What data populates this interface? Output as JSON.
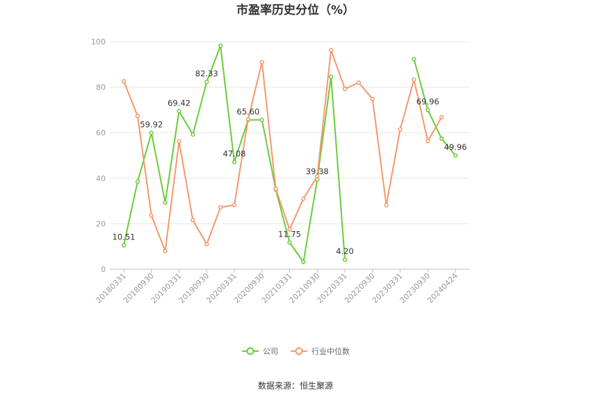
{
  "chart_data": {
    "type": "line",
    "title": "市盈率历史分位（%）",
    "source": "数据来源：恒生聚源",
    "ylim": [
      0,
      100
    ],
    "y_ticks": [
      0,
      20,
      40,
      60,
      80,
      100
    ],
    "grid": true,
    "legend_position": "bottom-center",
    "x": [
      "20180331",
      "20180630",
      "20180930",
      "20181231",
      "20190331",
      "20190630",
      "20190930",
      "20191231",
      "20200331",
      "20200630",
      "20200930",
      "20201231",
      "20210331",
      "20210630",
      "20210930",
      "20211231",
      "20220331",
      "20220630",
      "20220930",
      "20221231",
      "20230331",
      "20230630",
      "20230930",
      "20231231",
      "20240424"
    ],
    "x_tick_labels": [
      "20180331",
      "",
      "20180930",
      "",
      "20190331",
      "",
      "20190930",
      "",
      "20200331",
      "",
      "20200930",
      "",
      "20210331",
      "",
      "20210930",
      "",
      "20220331",
      "",
      "20220930",
      "",
      "20230331",
      "",
      "20230930",
      "",
      "20240424"
    ],
    "series": [
      {
        "name": "公司",
        "color": "#6bcb3a",
        "values": [
          10.51,
          38.5,
          59.92,
          29.3,
          69.42,
          59.2,
          82.33,
          98.2,
          47.08,
          65.6,
          65.6,
          35.0,
          11.75,
          3.2,
          39.38,
          84.6,
          4.2,
          null,
          null,
          null,
          null,
          92.3,
          69.96,
          57.4,
          49.96
        ],
        "labels": [
          "10.51",
          "",
          "59.92",
          "",
          "69.42",
          "",
          "82.33",
          "",
          "47.08",
          "65.60",
          "",
          "",
          "11.75",
          "",
          "39.38",
          "",
          "4.20",
          "",
          "",
          "",
          "",
          "",
          "69.96",
          "",
          "49.96"
        ]
      },
      {
        "name": "行业中位数",
        "color": "#f4976c",
        "values": [
          82.6,
          67.3,
          23.6,
          8.0,
          56.2,
          21.6,
          11.0,
          27.2,
          28.2,
          65.9,
          91.0,
          35.3,
          17.5,
          31.0,
          40.8,
          96.3,
          79.2,
          82.0,
          74.8,
          28.1,
          61.4,
          83.3,
          56.3,
          66.8,
          null
        ],
        "labels": []
      }
    ]
  }
}
